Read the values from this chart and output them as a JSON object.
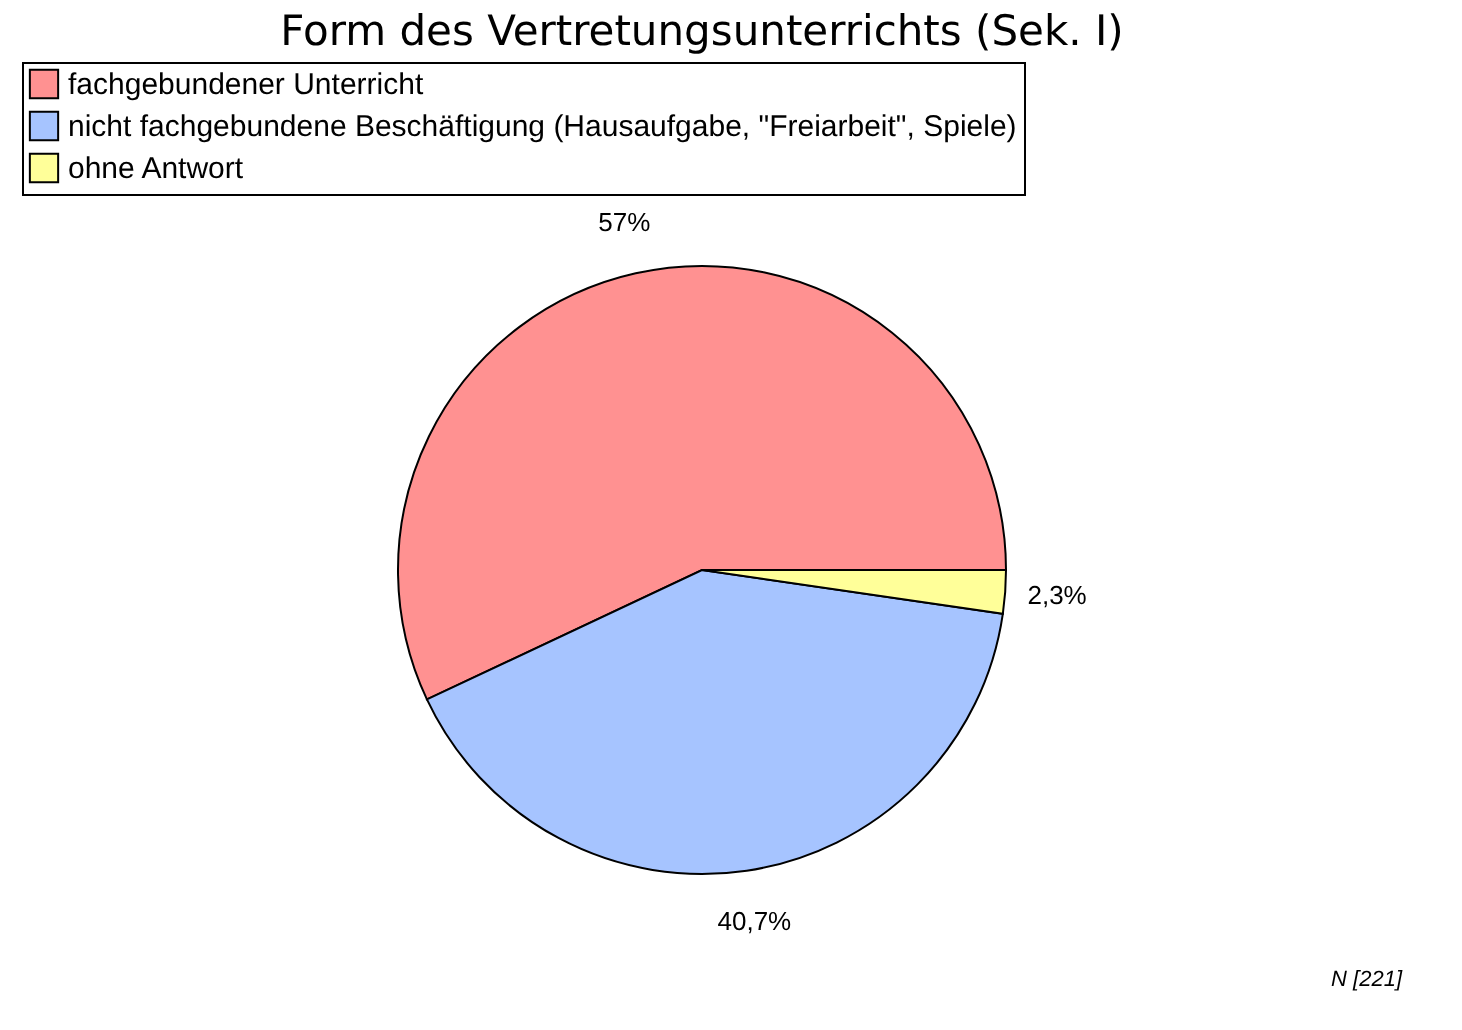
{
  "chart_data": {
    "type": "pie",
    "title": "Form des Vertretungsunterrichts (Sek. I)",
    "categories": [
      "fachgebundener Unterricht",
      "nicht fachgebundene Beschäftigung (Hausaufgabe, \"Freiarbeit\", Spiele)",
      "ohne Antwort"
    ],
    "values": [
      57,
      40.7,
      2.3
    ],
    "colors": [
      "#ff9191",
      "#a6c4ff",
      "#ffff99"
    ],
    "value_labels": [
      "57%",
      "40,7%",
      "2,3%"
    ],
    "legend": "top",
    "annotations": [
      "N [221]"
    ]
  }
}
